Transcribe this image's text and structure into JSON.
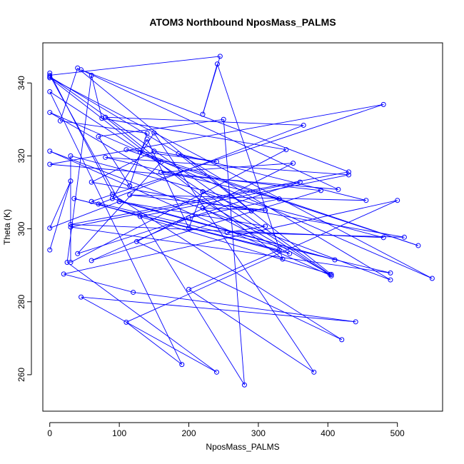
{
  "chart_data": {
    "type": "line",
    "title": "ATOM3 Northbound NposMass_PALMS",
    "xlabel": "NposMass_PALMS",
    "ylabel": "Theta (K)",
    "xlim": [
      -10,
      565
    ],
    "ylim": [
      250,
      351
    ],
    "x_ticks": [
      0,
      100,
      200,
      300,
      400,
      500
    ],
    "y_ticks": [
      260,
      280,
      300,
      320,
      340
    ],
    "grid": false,
    "legend": "none",
    "series_color": "#0000ff",
    "markers": "open-circle",
    "points": [
      [
        0,
        294.2
      ],
      [
        30,
        313.1
      ],
      [
        0,
        300.2
      ],
      [
        100,
        307.5
      ],
      [
        0,
        342.1
      ],
      [
        245,
        347.3
      ],
      [
        220,
        331.4
      ],
      [
        241,
        345.2
      ],
      [
        335,
        291.7
      ],
      [
        0,
        341.4
      ],
      [
        550,
        286.4
      ],
      [
        0,
        331.9
      ],
      [
        403,
        287.5
      ],
      [
        0,
        341.7
      ],
      [
        490,
        286.0
      ],
      [
        0,
        321.3
      ],
      [
        405,
        287.1
      ],
      [
        0,
        337.6
      ],
      [
        190,
        262.8
      ],
      [
        110,
        274.4
      ],
      [
        500,
        307.8
      ],
      [
        20,
        287.6
      ],
      [
        120,
        282.6
      ],
      [
        440,
        274.5
      ],
      [
        45,
        281.3
      ],
      [
        240,
        260.7
      ],
      [
        25,
        290.8
      ],
      [
        60,
        342.1
      ],
      [
        75,
        330.3
      ],
      [
        340,
        321.7
      ],
      [
        30,
        290.8
      ],
      [
        30,
        320.0
      ],
      [
        480,
        297.6
      ],
      [
        30,
        301.2
      ],
      [
        430,
        315.6
      ],
      [
        45,
        343.6
      ],
      [
        415,
        310.8
      ],
      [
        0,
        317.7
      ],
      [
        480,
        334.1
      ],
      [
        60,
        307.5
      ],
      [
        490,
        287.9
      ],
      [
        30,
        300.5
      ],
      [
        360,
        312.8
      ],
      [
        40,
        293.2
      ],
      [
        160,
        318.3
      ],
      [
        80,
        330.6
      ],
      [
        365,
        328.4
      ],
      [
        70,
        306.8
      ],
      [
        405,
        287.5
      ],
      [
        185,
        320.6
      ],
      [
        455,
        307.8
      ],
      [
        115,
        309.3
      ],
      [
        310,
        305.1
      ],
      [
        220,
        305.7
      ],
      [
        345,
        293.2
      ],
      [
        35,
        308.3
      ],
      [
        330,
        294.2
      ],
      [
        200,
        283.4
      ],
      [
        380,
        260.7
      ],
      [
        150,
        326.3
      ],
      [
        90,
        308.3
      ],
      [
        410,
        291.5
      ],
      [
        100,
        307.5
      ],
      [
        310,
        300.7
      ],
      [
        255,
        299.0
      ],
      [
        510,
        297.7
      ],
      [
        60,
        312.8
      ],
      [
        150,
        321.3
      ],
      [
        240,
        318.4
      ],
      [
        110,
        321.7
      ],
      [
        530,
        295.4
      ],
      [
        130,
        321.0
      ],
      [
        140,
        324.6
      ],
      [
        200,
        300.2
      ],
      [
        220,
        310.2
      ],
      [
        290,
        304.9
      ],
      [
        40,
        344.1
      ],
      [
        15,
        329.6
      ],
      [
        140,
        326.2
      ],
      [
        115,
        311.8
      ],
      [
        70,
        325.3
      ],
      [
        250,
        330.0
      ],
      [
        280,
        257.2
      ],
      [
        130,
        303.4
      ],
      [
        430,
        314.8
      ],
      [
        80,
        319.6
      ],
      [
        330,
        308.2
      ],
      [
        200,
        303.0
      ],
      [
        60,
        291.3
      ],
      [
        390,
        310.5
      ],
      [
        160,
        315.5
      ],
      [
        350,
        318.0
      ],
      [
        125,
        296.5
      ],
      [
        420,
        269.6
      ],
      [
        90,
        309.5
      ],
      [
        0,
        342.7
      ]
    ]
  }
}
